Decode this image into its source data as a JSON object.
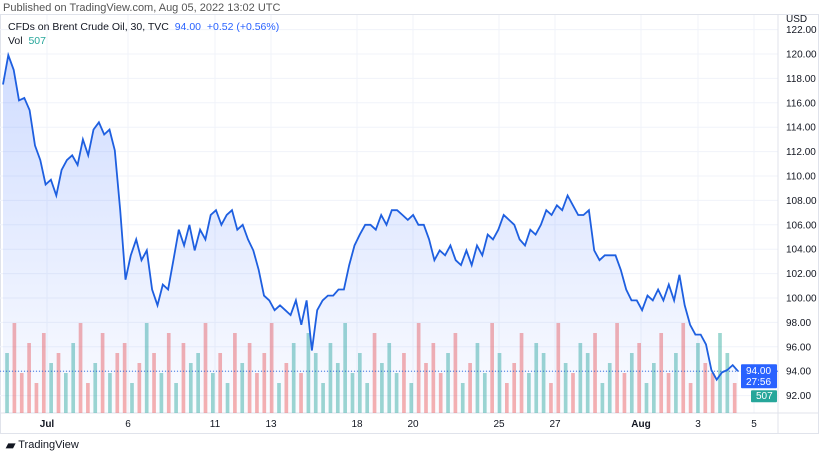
{
  "published": "Published on TradingView.com, Aug 05, 2022 13:02 UTC",
  "legend": {
    "symbol": "CFDs on Brent Crude Oil, 30, TVC",
    "price": "94.00",
    "change": "+0.52 (+0.56%)",
    "vol_label": "Vol",
    "vol_value": "507"
  },
  "axis": {
    "currency": "USD",
    "countdown": "27:56"
  },
  "footer": {
    "brand": "TradingView"
  },
  "colors": {
    "line": "#1e5fe0",
    "up_vol": "#26a69a",
    "down_vol": "#ef5350",
    "price_label": "#2962ff",
    "vol_badge": "#26a69a"
  },
  "chart_data": {
    "type": "area",
    "ylim": [
      91,
      122.5
    ],
    "yticks": [
      "92.00",
      "94.00",
      "96.00",
      "98.00",
      "100.00",
      "102.00",
      "104.00",
      "106.00",
      "108.00",
      "110.00",
      "112.00",
      "114.00",
      "116.00",
      "118.00",
      "120.00",
      "122.00"
    ],
    "xticks": [
      "Jul",
      "6",
      "11",
      "13",
      "18",
      "20",
      "25",
      "27",
      "Aug",
      "3",
      "5"
    ],
    "grid": true,
    "last_price": 94.0,
    "prices": [
      117.5,
      119.9,
      118.7,
      116.2,
      116.4,
      115.4,
      112.5,
      111.3,
      109.3,
      109.7,
      108.4,
      110.5,
      111.3,
      111.7,
      110.9,
      113.0,
      111.7,
      113.8,
      114.4,
      113.4,
      113.8,
      112.1,
      107.2,
      101.5,
      103.5,
      104.8,
      103.1,
      103.9,
      100.7,
      99.4,
      101.1,
      100.7,
      103.1,
      105.6,
      104.3,
      106.0,
      103.9,
      105.6,
      104.8,
      106.8,
      107.2,
      106.0,
      106.8,
      107.2,
      105.6,
      106.0,
      104.8,
      103.9,
      102.3,
      100.2,
      99.8,
      99.0,
      99.4,
      99.0,
      98.6,
      99.8,
      97.8,
      99.8,
      95.7,
      99.0,
      99.8,
      100.2,
      100.2,
      100.7,
      100.7,
      102.7,
      104.3,
      105.2,
      106.0,
      106.0,
      105.6,
      106.8,
      106.0,
      107.2,
      107.2,
      106.8,
      106.4,
      106.8,
      106.0,
      106.0,
      104.8,
      103.1,
      103.9,
      103.5,
      104.3,
      103.1,
      102.7,
      103.9,
      102.7,
      104.3,
      103.5,
      105.2,
      104.8,
      105.6,
      106.8,
      106.4,
      106.0,
      104.8,
      104.3,
      105.6,
      105.2,
      106.0,
      107.2,
      106.8,
      107.6,
      107.2,
      108.4,
      107.6,
      106.8,
      106.8,
      107.2,
      103.9,
      103.1,
      103.5,
      103.5,
      103.5,
      102.3,
      100.7,
      99.8,
      99.8,
      99.0,
      100.2,
      99.8,
      100.7,
      99.8,
      101.1,
      99.8,
      101.9,
      99.4,
      97.8,
      97.0,
      97.0,
      96.2,
      94.1,
      93.3,
      93.9,
      94.1,
      94.5,
      94.0
    ],
    "volume": [
      6,
      9,
      4,
      7,
      3,
      8,
      5,
      6,
      4,
      7,
      9,
      3,
      5,
      8,
      4,
      6,
      7,
      3,
      5,
      9,
      6,
      4,
      8,
      3,
      7,
      5,
      6,
      9,
      4,
      6,
      3,
      8,
      5,
      7,
      4,
      6,
      9,
      3,
      5,
      7,
      4,
      8,
      6,
      3,
      7,
      5,
      9,
      4,
      6,
      3,
      8,
      5,
      7,
      4,
      6,
      3,
      9,
      5,
      7,
      4,
      6,
      8,
      3,
      5,
      7,
      4,
      9,
      6,
      3,
      5,
      8,
      4,
      7,
      6,
      3,
      9,
      5,
      4,
      7,
      6,
      8,
      3,
      5,
      9,
      4,
      6,
      7,
      3,
      5,
      8,
      4,
      6,
      9,
      3,
      7,
      5,
      4,
      8,
      6,
      3
    ]
  }
}
